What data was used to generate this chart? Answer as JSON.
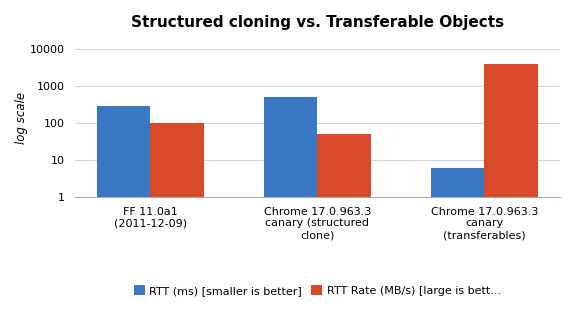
{
  "title": "Structured cloning vs. Transferable Objects",
  "categories": [
    "FF 11.0a1\n(2011-12-09)",
    "Chrome 17.0.963.3\ncanary (structured\nclone)",
    "Chrome 17.0.963.3\ncanary\n(transferables)"
  ],
  "rtt_ms": [
    300,
    500,
    6
  ],
  "rtt_rate": [
    100,
    50,
    4000
  ],
  "bar_color_blue": "#3b78c3",
  "bar_color_red": "#d94a2b",
  "ylabel": "log scale",
  "ylim_min": 1,
  "ylim_max": 20000,
  "yticks": [
    1,
    10,
    100,
    1000,
    10000
  ],
  "legend_blue": "RTT (ms) [smaller is better]",
  "legend_red": "RTT Rate (MB/s) [large is bett...",
  "title_fontsize": 11,
  "label_fontsize": 8.5,
  "tick_fontsize": 8,
  "legend_fontsize": 8,
  "bar_width": 0.32
}
